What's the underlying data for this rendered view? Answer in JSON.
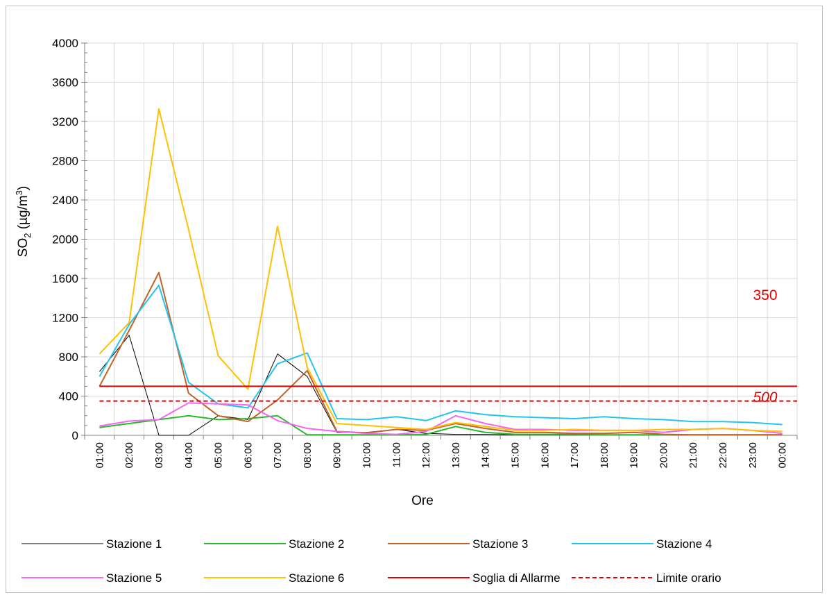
{
  "chart_data": {
    "type": "line",
    "title": "",
    "xlabel": "Ore",
    "ylabel": "SO",
    "ylabel_sub": "2",
    "ylabel_unit": " (µg/m",
    "ylabel_sup": "3",
    "ylabel_close": ")",
    "ylim": [
      0,
      4000
    ],
    "yticks": [
      0,
      400,
      800,
      1200,
      1600,
      2000,
      2400,
      2800,
      3200,
      3600,
      4000
    ],
    "grid": true,
    "legend_position": "bottom",
    "categories": [
      "01:00",
      "02:00",
      "03:00",
      "04:00",
      "05:00",
      "06:00",
      "07:00",
      "08:00",
      "09:00",
      "10:00",
      "11:00",
      "12:00",
      "13:00",
      "14:00",
      "15:00",
      "16:00",
      "17:00",
      "18:00",
      "19:00",
      "20:00",
      "21:00",
      "22:00",
      "23:00",
      "00:00"
    ],
    "series": [
      {
        "name": "Stazione 1",
        "color": "#000000",
        "width": 1,
        "dash": "",
        "values": [
          650,
          1020,
          0,
          0,
          200,
          160,
          830,
          600,
          30,
          30,
          60,
          20,
          10,
          10,
          5,
          5,
          5,
          5,
          5,
          5,
          5,
          5,
          5,
          5
        ]
      },
      {
        "name": "Stazione 2",
        "color": "#2db52d",
        "width": 2,
        "dash": "",
        "values": [
          80,
          120,
          160,
          200,
          160,
          170,
          200,
          5,
          5,
          5,
          5,
          10,
          90,
          30,
          10,
          10,
          10,
          5,
          5,
          5,
          5,
          5,
          5,
          5
        ]
      },
      {
        "name": "Stazione 3",
        "color": "#c0622a",
        "width": 2,
        "dash": "",
        "values": [
          500,
          1070,
          1660,
          430,
          200,
          140,
          360,
          660,
          40,
          25,
          60,
          50,
          120,
          70,
          30,
          30,
          20,
          20,
          30,
          10,
          5,
          5,
          5,
          5
        ]
      },
      {
        "name": "Stazione 4",
        "color": "#22c4ee",
        "width": 2,
        "dash": "",
        "values": [
          600,
          1130,
          1530,
          540,
          320,
          280,
          730,
          840,
          170,
          160,
          190,
          150,
          250,
          210,
          190,
          180,
          170,
          190,
          170,
          160,
          140,
          140,
          130,
          110
        ]
      },
      {
        "name": "Stazione 5",
        "color": "#f266f2",
        "width": 2,
        "dash": "",
        "values": [
          95,
          145,
          160,
          330,
          320,
          310,
          150,
          70,
          40,
          20,
          10,
          40,
          200,
          120,
          60,
          60,
          50,
          50,
          50,
          30,
          60,
          70,
          50,
          20
        ]
      },
      {
        "name": "Stazione 6",
        "color": "#ffc000",
        "width": 2,
        "dash": "",
        "values": [
          830,
          1150,
          3330,
          2100,
          810,
          470,
          2130,
          690,
          120,
          100,
          80,
          60,
          130,
          90,
          50,
          50,
          60,
          50,
          50,
          60,
          60,
          70,
          50,
          40
        ]
      },
      {
        "name": "Soglia di Allarme",
        "color": "#e00000",
        "width": 2,
        "dash": "",
        "values": [
          500,
          500,
          500,
          500,
          500,
          500,
          500,
          500,
          500,
          500,
          500,
          500,
          500,
          500,
          500,
          500,
          500,
          500,
          500,
          500,
          500,
          500,
          500,
          500
        ]
      },
      {
        "name": "Limite orario",
        "color": "#e00000",
        "width": 2,
        "dash": "6,4",
        "values": [
          350,
          350,
          350,
          350,
          350,
          350,
          350,
          350,
          350,
          350,
          350,
          350,
          350,
          350,
          350,
          350,
          350,
          350,
          350,
          350,
          350,
          350,
          350,
          350
        ]
      }
    ],
    "annotations": [
      {
        "text": "350",
        "x": "00:00",
        "y": 1380,
        "style": "normal"
      },
      {
        "text": "500",
        "x": "00:00",
        "y": 340,
        "style": "italic"
      }
    ]
  }
}
